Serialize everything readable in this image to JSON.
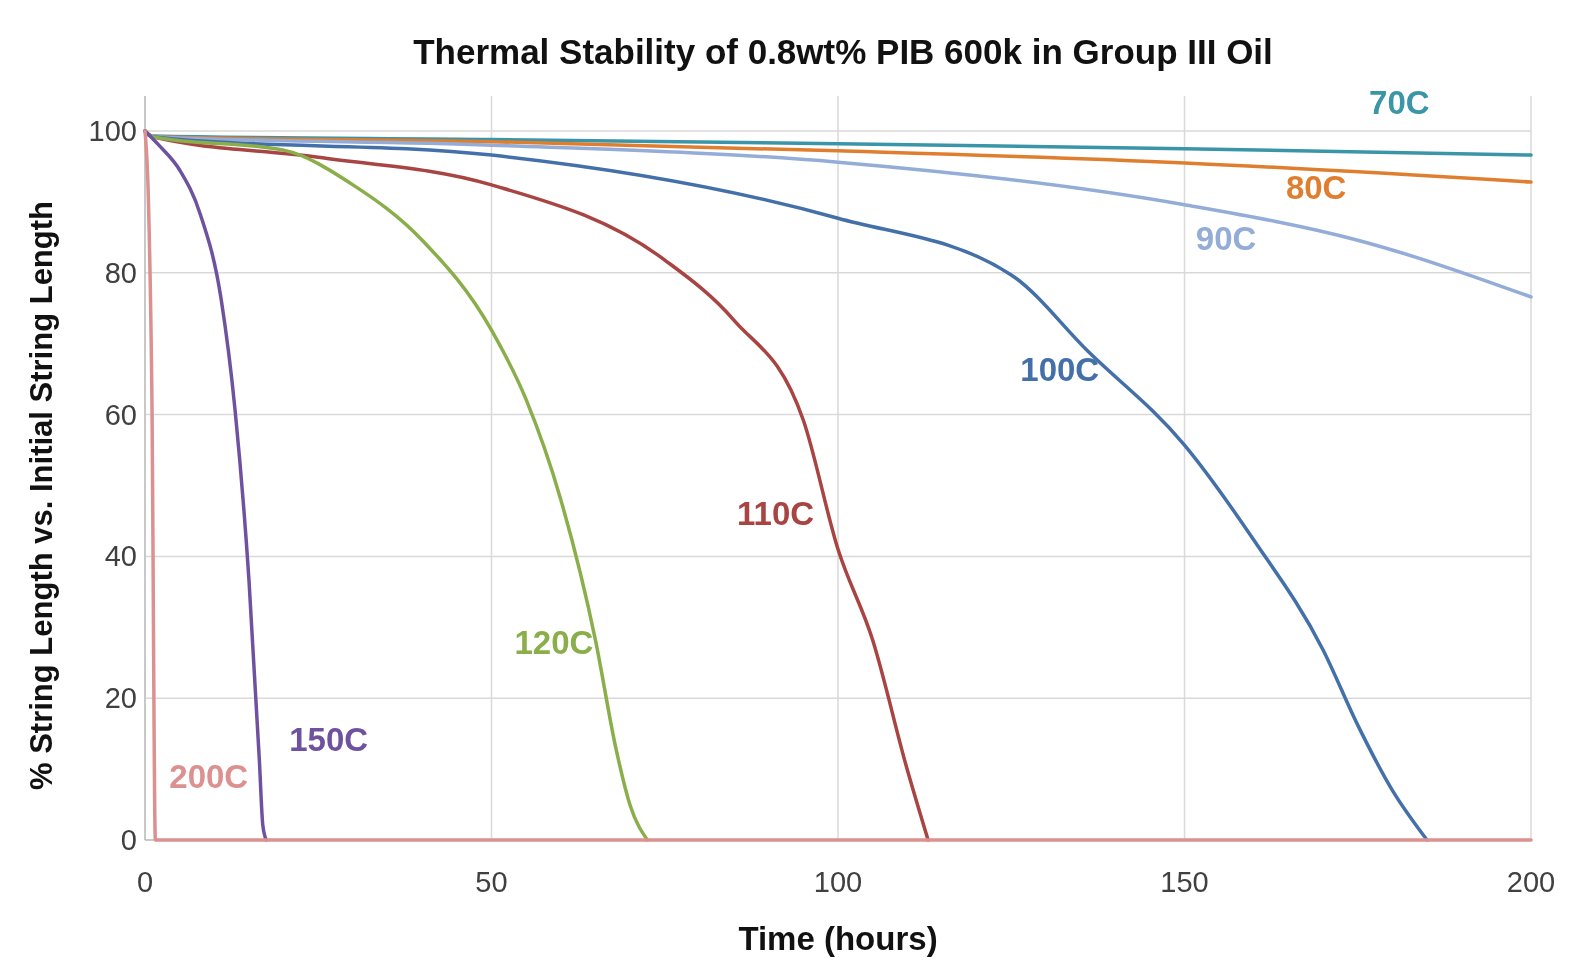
{
  "chart_data": {
    "type": "line",
    "title": "Thermal Stability of 0.8wt% PIB 600k in Group III Oil",
    "xlabel": "Time (hours)",
    "ylabel": "% String Length vs. Initial String Length",
    "xlim": [
      0,
      200
    ],
    "xticks": [
      0,
      50,
      100,
      150,
      200
    ],
    "ylim": [
      0,
      100
    ],
    "yticks": [
      0,
      20,
      40,
      60,
      80,
      100
    ],
    "grid": true,
    "marker": "none",
    "line_style": "solid",
    "series": [
      {
        "name": "70C",
        "color": "#3a95a8",
        "x": [
          0,
          1,
          50,
          100,
          150,
          200
        ],
        "values": [
          100,
          99.3,
          98.8,
          98.2,
          97.5,
          96.6
        ]
      },
      {
        "name": "80C",
        "color": "#e07e30",
        "x": [
          0,
          1,
          50,
          100,
          150,
          200
        ],
        "values": [
          100,
          99.2,
          98.5,
          97.2,
          95.5,
          92.8
        ]
      },
      {
        "name": "90C",
        "color": "#94acd8",
        "x": [
          0,
          1,
          50,
          100,
          150,
          175,
          200
        ],
        "values": [
          100,
          99.2,
          98,
          95.6,
          89.6,
          84.6,
          76.6
        ]
      },
      {
        "name": "100C",
        "color": "#4470aa",
        "x": [
          0,
          1,
          50,
          100,
          125,
          136,
          150,
          160,
          170,
          175,
          180,
          185
        ],
        "values": [
          100,
          99.2,
          96.6,
          87.7,
          79.7,
          69,
          55.7,
          42.3,
          26.8,
          16.2,
          7,
          0
        ]
      },
      {
        "name": "110C",
        "color": "#a84442",
        "x": [
          0,
          1,
          25,
          50,
          75,
          85,
          95,
          100,
          105,
          110,
          113
        ],
        "values": [
          100,
          99.2,
          96.3,
          92.4,
          81.8,
          73.3,
          59.2,
          41,
          28.2,
          9.9,
          0
        ]
      },
      {
        "name": "120C",
        "color": "#8aae4a",
        "x": [
          0,
          1,
          20,
          30,
          40,
          50,
          55,
          60,
          65,
          68,
          70,
          72.5
        ],
        "values": [
          100,
          99.2,
          97.3,
          92.4,
          84.6,
          71.9,
          62.1,
          48,
          28.2,
          12.7,
          4.9,
          0
        ]
      },
      {
        "name": "150C",
        "color": "#6e52a0",
        "x": [
          0,
          2,
          5,
          8,
          11,
          13,
          15,
          16.5,
          17,
          17.5
        ],
        "values": [
          100,
          98,
          94.5,
          88.2,
          76.2,
          60.6,
          36.7,
          11.3,
          2.1,
          0
        ]
      },
      {
        "name": "200C",
        "color": "#dc9090",
        "x": [
          0,
          0.5,
          1,
          1.5,
          200
        ],
        "values": [
          100,
          90,
          62,
          0,
          0
        ]
      }
    ]
  }
}
